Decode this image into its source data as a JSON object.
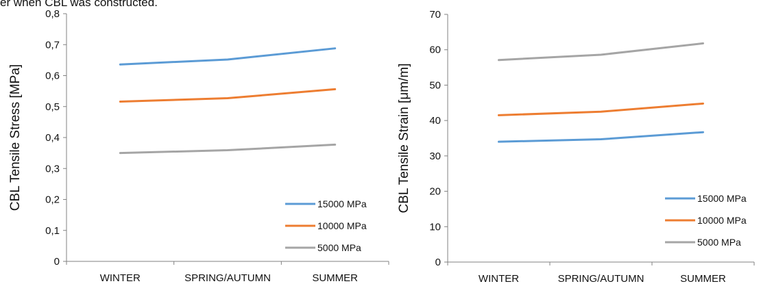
{
  "caption_fragment": "er when CBL was constructed.",
  "chart_data": [
    {
      "type": "line",
      "categories": [
        "WINTER",
        "SPRING/AUTUMN",
        "SUMMER"
      ],
      "ylabel": "CBL Tensile Stress [MPa]",
      "xlabel": "",
      "ylim": [
        0,
        0.8
      ],
      "yticks": [
        "0",
        "0,1",
        "0,2",
        "0,3",
        "0,4",
        "0,5",
        "0,6",
        "0,7",
        "0,8"
      ],
      "grid": false,
      "legend_position": "bottom-right",
      "series": [
        {
          "name": "15000 MPa",
          "color": "#5B9BD5",
          "values": [
            0.636,
            0.652,
            0.688
          ]
        },
        {
          "name": "10000 MPa",
          "color": "#ED7D31",
          "values": [
            0.516,
            0.527,
            0.556
          ]
        },
        {
          "name": "5000 MPa",
          "color": "#A5A5A5",
          "values": [
            0.35,
            0.359,
            0.377
          ]
        }
      ]
    },
    {
      "type": "line",
      "categories": [
        "WINTER",
        "SPRING/AUTUMN",
        "SUMMER"
      ],
      "ylabel": "CBL Tensile Strain [μm/m]",
      "xlabel": "",
      "ylim": [
        0,
        70
      ],
      "yticks": [
        "0",
        "10",
        "20",
        "30",
        "40",
        "50",
        "60",
        "70"
      ],
      "grid": false,
      "legend_position": "bottom-right",
      "series": [
        {
          "name": "15000 MPa",
          "color": "#5B9BD5",
          "values": [
            34.0,
            34.7,
            36.7
          ]
        },
        {
          "name": "10000 MPa",
          "color": "#ED7D31",
          "values": [
            41.5,
            42.5,
            44.8
          ]
        },
        {
          "name": "5000 MPa",
          "color": "#A5A5A5",
          "values": [
            57.1,
            58.6,
            61.8
          ]
        }
      ]
    }
  ]
}
